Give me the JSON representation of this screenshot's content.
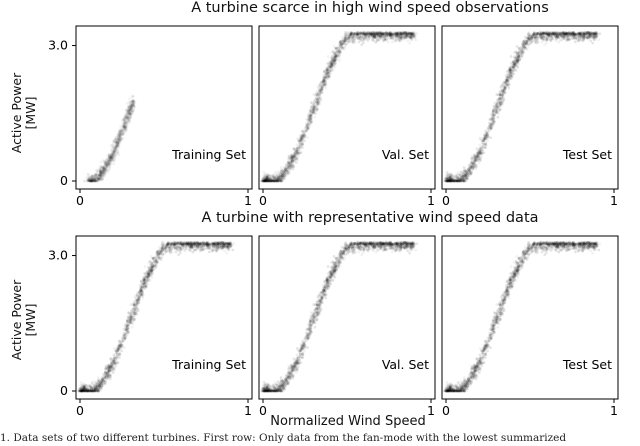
{
  "chart_data": [
    {
      "type": "scatter",
      "title": "A turbine scarce in high wind speed observations",
      "ylabel": "Active Power\n[MW]",
      "ylim": [
        0,
        3.3
      ],
      "xlim": [
        0,
        1
      ],
      "yticks": [
        "0",
        "3.0"
      ],
      "xticks": [
        "0",
        "1"
      ],
      "panels": [
        {
          "label": "Training Set",
          "x_range": [
            0.05,
            0.32
          ],
          "description": "power curve only up to ~2.6 MW"
        },
        {
          "label": "Val. Set",
          "x_range": [
            0.0,
            1.0
          ]
        },
        {
          "label": "Test Set",
          "x_range": [
            0.0,
            1.0
          ]
        }
      ],
      "curve": {
        "rated_power": 3.25,
        "cut_in": 0.06,
        "rated_speed": 0.55
      }
    },
    {
      "type": "scatter",
      "title": "A turbine with representative wind speed data",
      "ylabel": "Active Power\n[MW]",
      "ylim": [
        0,
        3.3
      ],
      "xlim": [
        0,
        1
      ],
      "yticks": [
        "0",
        "3.0"
      ],
      "xticks": [
        "0",
        "1"
      ],
      "panels": [
        {
          "label": "Training Set",
          "x_range": [
            0.0,
            1.0
          ]
        },
        {
          "label": "Val. Set",
          "x_range": [
            0.0,
            1.0
          ]
        },
        {
          "label": "Test Set",
          "x_range": [
            0.0,
            1.0
          ]
        }
      ],
      "curve": {
        "rated_power": 3.25,
        "cut_in": 0.06,
        "rated_speed": 0.55
      }
    }
  ],
  "xlabel": "Normalized Wind Speed",
  "caption": "1. Data sets of two different turbines. First row: Only data from the fan-mode with the lowest summarized"
}
